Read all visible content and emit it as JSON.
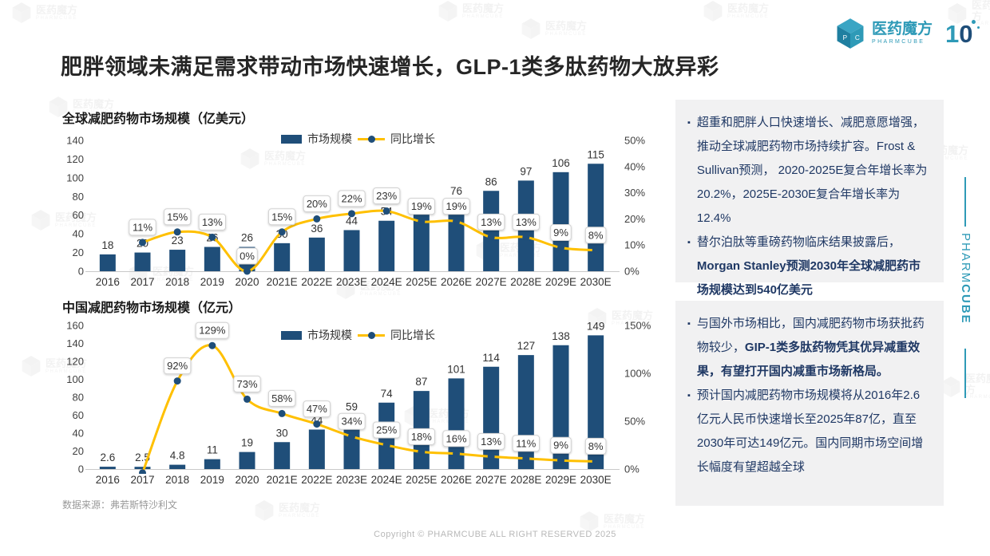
{
  "page": {
    "title": "肥胖领域未满足需求带动市场快速增长，GLP-1类多肽药物大放异彩",
    "footnote": "数据来源：弗若斯特沙利文",
    "copyright": "Copyright © PHARMCUBE ALL RIGHT RESERVED 2025"
  },
  "brand": {
    "logo_text": "医药魔方",
    "logo_subtext": "PHARMCUBE",
    "anniversary": "10",
    "side_text_light": "PHARM",
    "side_text_bold": "CUBE"
  },
  "colors": {
    "bar": "#1F4E79",
    "line": "#FFC000",
    "marker": "#1F4E79",
    "teal": "#2E9AB7",
    "navy_text": "#1F3864"
  },
  "chart_data": [
    {
      "type": "bar",
      "title": "全球减肥药物市场规模（亿美元）",
      "legend": [
        "市场规模",
        "同比增长"
      ],
      "categories": [
        "2016",
        "2017",
        "2018",
        "2019",
        "2020",
        "2021E",
        "2022E",
        "2023E",
        "2024E",
        "2025E",
        "2026E",
        "2027E",
        "2028E",
        "2029E",
        "2030E"
      ],
      "series": [
        {
          "name": "市场规模",
          "type": "bar",
          "values": [
            18,
            20,
            23,
            26,
            26,
            30,
            36,
            44,
            54,
            64,
            76,
            86,
            97,
            106,
            115
          ]
        },
        {
          "name": "同比增长",
          "type": "line",
          "unit": "%",
          "values": [
            null,
            11,
            15,
            13,
            0,
            15,
            20,
            22,
            23,
            19,
            19,
            13,
            13,
            9,
            8
          ],
          "labels": [
            "",
            "11%",
            "15%",
            "13%",
            "0%",
            "15%",
            "20%",
            "22%",
            "23%",
            "19%",
            "19%",
            "13%",
            "13%",
            "9%",
            "8%"
          ]
        }
      ],
      "left_axis": {
        "ticks": [
          0,
          20,
          40,
          60,
          80,
          100,
          120,
          140
        ]
      },
      "right_axis": {
        "ticks": [
          "0%",
          "10%",
          "20%",
          "30%",
          "40%",
          "50%"
        ],
        "max": 50
      },
      "grid": false,
      "legend_position": "top-center"
    },
    {
      "type": "bar",
      "title": "中国减肥药物市场规模（亿元）",
      "legend": [
        "市场规模",
        "同比增长"
      ],
      "categories": [
        "2016",
        "2017",
        "2018",
        "2019",
        "2020",
        "2021E",
        "2022E",
        "2023E",
        "2024E",
        "2025E",
        "2026E",
        "2027E",
        "2028E",
        "2029E",
        "2030E"
      ],
      "series": [
        {
          "name": "市场规模",
          "type": "bar",
          "values": [
            2.6,
            2.5,
            4.8,
            11,
            19,
            30,
            44,
            59,
            74,
            87,
            101,
            114,
            127,
            138,
            149
          ]
        },
        {
          "name": "同比增长",
          "type": "line",
          "unit": "%",
          "values": [
            null,
            -4,
            92,
            129,
            73,
            58,
            47,
            34,
            25,
            18,
            16,
            13,
            11,
            9,
            8
          ],
          "labels": [
            "",
            "",
            "92%",
            "129%",
            "73%",
            "58%",
            "47%",
            "34%",
            "25%",
            "18%",
            "16%",
            "13%",
            "11%",
            "9%",
            "8%"
          ]
        }
      ],
      "left_axis": {
        "ticks": [
          0,
          20,
          40,
          60,
          80,
          100,
          120,
          140,
          160
        ]
      },
      "right_axis": {
        "ticks": [
          "0%",
          "50%",
          "100%",
          "150%"
        ],
        "max": 150
      },
      "grid": false,
      "legend_position": "top-center"
    }
  ],
  "panels": [
    {
      "bullets": [
        {
          "segments": [
            {
              "t": "超重和肥胖人口快速增长、减肥意愿增强，推动全球减肥药物市场持续扩容。Frost & Sullivan预测， 2020-2025E复合年增长率为20.2%，2025E-2030E复合年增长率为12.4%",
              "b": false
            }
          ]
        },
        {
          "segments": [
            {
              "t": "替尔泊肽等重磅药物临床结果披露后，",
              "b": false
            },
            {
              "t": "Morgan Stanley预测2030年全球减肥药市场规模达到540亿美元",
              "b": true
            }
          ]
        }
      ]
    },
    {
      "bullets": [
        {
          "segments": [
            {
              "t": "与国外市场相比，国内减肥药物市场获批药物较少，",
              "b": false
            },
            {
              "t": "GIP-1类多肽药物凭其优异减重效果，有望打开国内减重市场新格局。",
              "b": true
            }
          ]
        },
        {
          "segments": [
            {
              "t": "预计国内减肥药物市场规模将从2016年2.6亿元人民币快速增长至2025年87亿，直至2030年可达149亿元。国内同期市场空间增长幅度有望超越全球",
              "b": false
            }
          ]
        }
      ]
    }
  ]
}
